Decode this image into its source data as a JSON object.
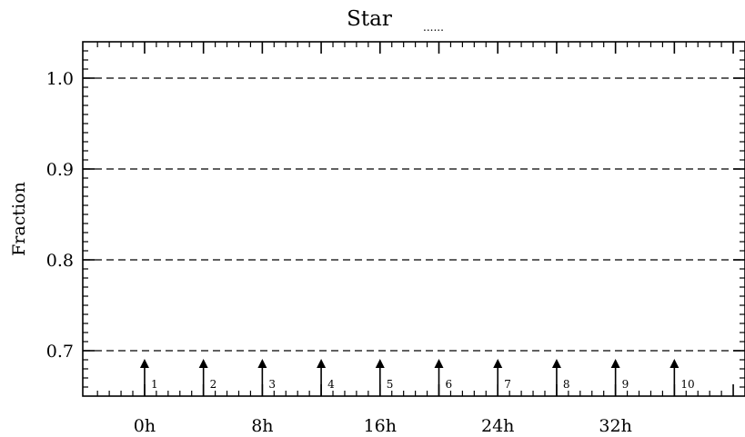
{
  "chart_data": {
    "type": "line",
    "title": "Star",
    "title_suffix": "......",
    "xlabel": "",
    "ylabel": "Fraction",
    "xlim": [
      -4.2,
      40.8
    ],
    "ylim": [
      0.65,
      1.04
    ],
    "x_ticks": [
      {
        "value": 0,
        "label": "0h"
      },
      {
        "value": 8,
        "label": "8h"
      },
      {
        "value": 16,
        "label": "16h"
      },
      {
        "value": 24,
        "label": "24h"
      },
      {
        "value": 32,
        "label": "32h"
      }
    ],
    "y_ticks": [
      {
        "value": 0.7,
        "label": "0.7"
      },
      {
        "value": 0.8,
        "label": "0.8"
      },
      {
        "value": 0.9,
        "label": "0.9"
      },
      {
        "value": 1.0,
        "label": "1.0"
      }
    ],
    "grid": {
      "y": true,
      "x": false,
      "style": "dashed"
    },
    "series": [],
    "markers": [
      {
        "x": 0,
        "label": "1"
      },
      {
        "x": 4,
        "label": "2"
      },
      {
        "x": 8,
        "label": "3"
      },
      {
        "x": 12,
        "label": "4"
      },
      {
        "x": 16,
        "label": "5"
      },
      {
        "x": 20,
        "label": "6"
      },
      {
        "x": 24,
        "label": "7"
      },
      {
        "x": 28,
        "label": "8"
      },
      {
        "x": 32,
        "label": "9"
      },
      {
        "x": 36,
        "label": "10"
      }
    ]
  }
}
